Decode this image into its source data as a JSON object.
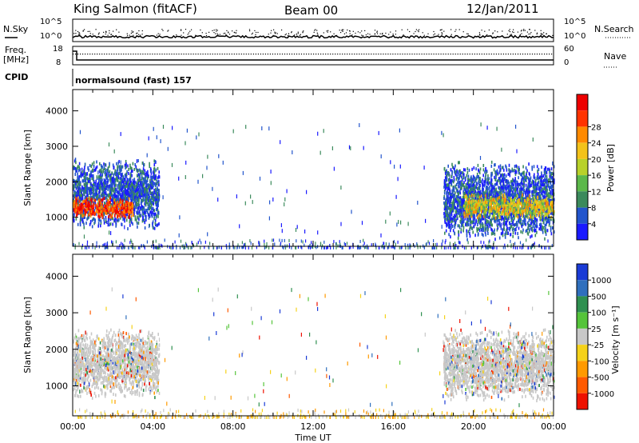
{
  "header": {
    "station": "King Salmon (fitACF)",
    "beam": "Beam 00",
    "date": "12/Jan/2011"
  },
  "top_panels": {
    "nsky_label": "N.Sky",
    "nsearch_label": "N.Search",
    "nsky_ticks": [
      "10^5",
      "10^0"
    ],
    "freq_label_line1": "Freq.",
    "freq_label_line2": "[MHz]",
    "freq_ticks": [
      "18",
      "8"
    ],
    "nave_label": "Nave",
    "nave_ticks": [
      "60",
      "0"
    ],
    "cpid_label": "CPID",
    "cpid_text": "normalsound (fast) 157"
  },
  "chart_data": [
    {
      "type": "heatmap",
      "name": "power",
      "xlabel": "Time UT",
      "ylabel": "Slant Range [km]",
      "x_ticks": [
        "00:00",
        "04:00",
        "08:00",
        "12:00",
        "16:00",
        "20:00",
        "00:00"
      ],
      "x_range_hours": [
        0,
        24
      ],
      "y_ticks": [
        1000,
        2000,
        3000,
        4000
      ],
      "ylim": [
        180,
        4600
      ],
      "colorbar_label": "Power [dB]",
      "colorbar_ticks": [
        "4",
        "8",
        "12",
        "16",
        "20",
        "24",
        "28"
      ],
      "colorbar_colors": [
        "#1a1aff",
        "#2255cc",
        "#3b8a5c",
        "#5cb84a",
        "#b8d12a",
        "#f3c21a",
        "#ff8a00",
        "#ff3300",
        "#ee0000"
      ],
      "regions": [
        {
          "t": [
            0.0,
            4.3
          ],
          "range": [
            700,
            2700
          ],
          "level": "low"
        },
        {
          "t": [
            0.0,
            3.0
          ],
          "range": [
            1000,
            1600
          ],
          "level": "high"
        },
        {
          "t": [
            18.5,
            24.0
          ],
          "range": [
            400,
            2600
          ],
          "level": "low"
        },
        {
          "t": [
            19.5,
            24.0
          ],
          "range": [
            1000,
            1700
          ],
          "level": "medium"
        }
      ]
    },
    {
      "type": "heatmap",
      "name": "velocity",
      "xlabel": "Time UT",
      "ylabel": "Slant Range [km]",
      "x_ticks": [
        "00:00",
        "04:00",
        "08:00",
        "12:00",
        "16:00",
        "20:00",
        "00:00"
      ],
      "x_range_hours": [
        0,
        24
      ],
      "y_ticks": [
        1000,
        2000,
        3000,
        4000
      ],
      "ylim": [
        180,
        4600
      ],
      "colorbar_label": "Velocity [m s⁻¹]",
      "colorbar_ticks": [
        "1000",
        "500",
        "100",
        "25",
        "-25",
        "-100",
        "-500",
        "-1000"
      ],
      "colorbar_colors": [
        "#1a3bd6",
        "#2f6fbd",
        "#2f9050",
        "#55c43a",
        "#c8c8c8",
        "#f5d21a",
        "#ff9a00",
        "#ff5a00",
        "#ee1100"
      ],
      "regions": [
        {
          "t": [
            0.0,
            4.3
          ],
          "range": [
            700,
            2600
          ],
          "level": "ground"
        },
        {
          "t": [
            18.5,
            24.0
          ],
          "range": [
            600,
            2600
          ],
          "level": "ground"
        }
      ]
    }
  ]
}
